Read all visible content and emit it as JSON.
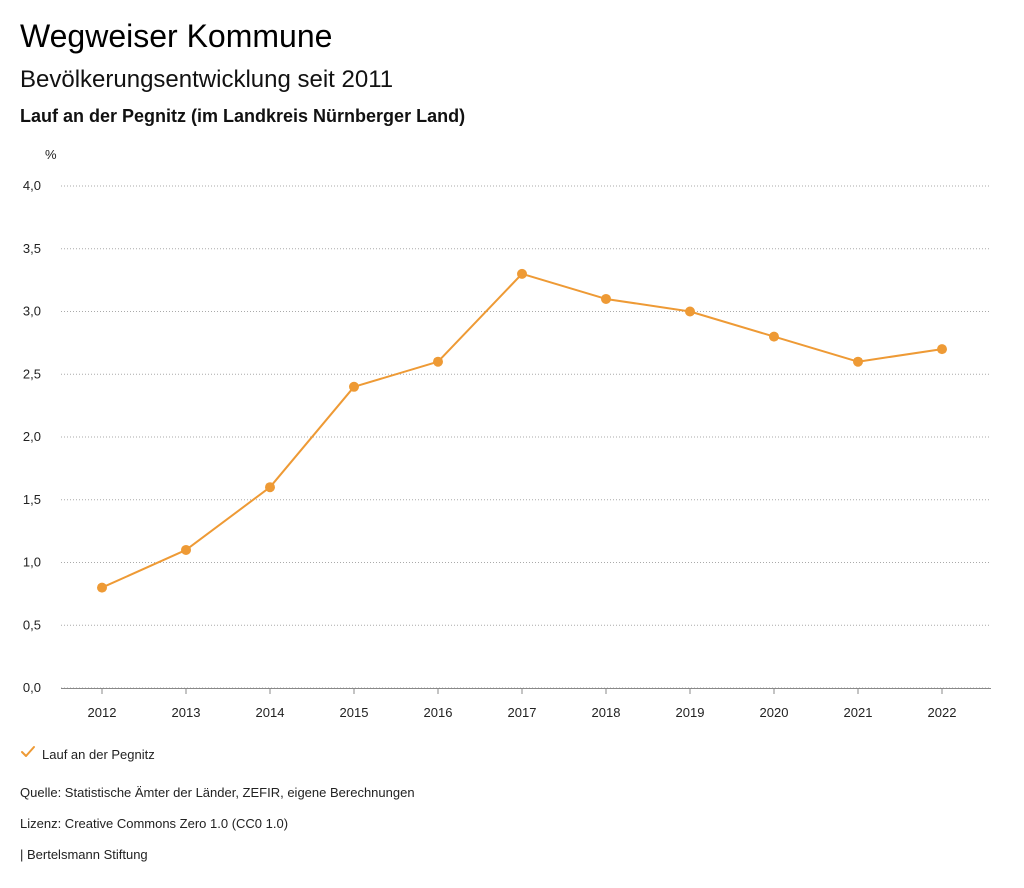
{
  "header": {
    "title": "Wegweiser Kommune",
    "subtitle": "Bevölkerungsentwicklung seit 2011",
    "region": "Lauf an der Pegnitz (im Landkreis Nürnberger Land)"
  },
  "legend": {
    "label": "Lauf an der Pegnitz",
    "icon": "check-icon"
  },
  "footer": {
    "source": "Quelle: Statistische Ämter der Länder, ZEFIR, eigene Berechnungen",
    "license": "Lizenz: Creative Commons Zero 1.0 (CC0 1.0)",
    "publisher": "| Bertelsmann Stiftung"
  },
  "colors": {
    "series": "#ee9a35",
    "grid": "#aaaaaa",
    "axis_text": "#222222"
  },
  "chart_data": {
    "type": "line",
    "unit_label": "%",
    "x": [
      "2012",
      "2013",
      "2014",
      "2015",
      "2016",
      "2017",
      "2018",
      "2019",
      "2020",
      "2021",
      "2022"
    ],
    "series": [
      {
        "name": "Lauf an der Pegnitz",
        "values": [
          0.8,
          1.1,
          1.6,
          2.4,
          2.6,
          3.3,
          3.1,
          3.0,
          2.8,
          2.6,
          2.7
        ]
      }
    ],
    "ylim": [
      0,
      4
    ],
    "yticks": [
      0,
      0.5,
      1,
      1.5,
      2,
      2.5,
      3,
      3.5,
      4
    ],
    "ytick_labels": [
      "0,0",
      "0,5",
      "1,0",
      "1,5",
      "2,0",
      "2,5",
      "3,0",
      "3,5",
      "4,0"
    ],
    "grid": true,
    "legend_position": "bottom-left"
  }
}
